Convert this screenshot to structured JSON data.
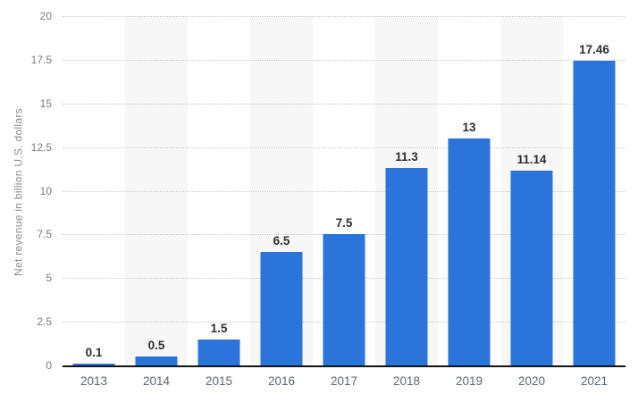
{
  "chart_data": {
    "type": "bar",
    "title": "",
    "categories": [
      "2013",
      "2014",
      "2015",
      "2016",
      "2017",
      "2018",
      "2019",
      "2020",
      "2021"
    ],
    "values": [
      0.1,
      0.5,
      1.5,
      6.5,
      7.5,
      11.3,
      13,
      11.14,
      17.46
    ],
    "value_labels": [
      "0.1",
      "0.5",
      "1.5",
      "6.5",
      "7.5",
      "11.3",
      "13",
      "11.14",
      "17.46"
    ],
    "xlabel": "",
    "ylabel": "Net revenue in billion U.S. dollars",
    "ylim": [
      0,
      20
    ],
    "yticks": [
      0,
      2.5,
      5,
      7.5,
      10,
      12.5,
      15,
      17.5,
      20
    ],
    "grid": "horizontal-dotted",
    "legend": "none",
    "colors": {
      "bar": "#2a74dc",
      "stripe": "#f7f7f7",
      "gridline": "#c9c9c9",
      "axis_line": "#141414",
      "value_label": "#2e2e2e",
      "tick_label": "#7a7a7a",
      "x_label": "#5d6770",
      "background": "#ffffff"
    }
  }
}
